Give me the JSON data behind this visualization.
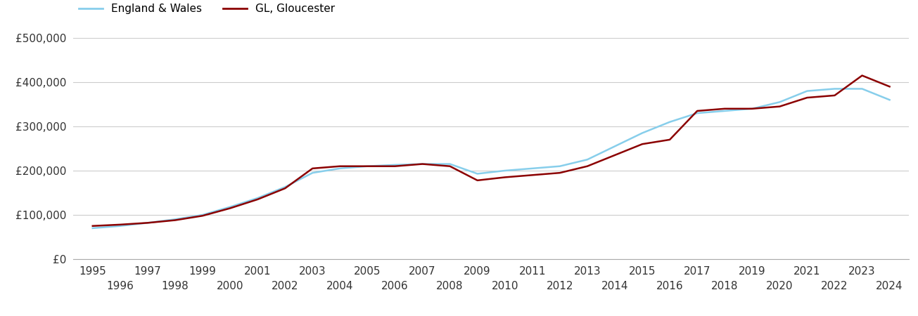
{
  "gloucester": {
    "years": [
      1995,
      1996,
      1997,
      1998,
      1999,
      2000,
      2001,
      2002,
      2003,
      2004,
      2005,
      2006,
      2007,
      2008,
      2009,
      2010,
      2011,
      2012,
      2013,
      2014,
      2015,
      2016,
      2017,
      2018,
      2019,
      2020,
      2021,
      2022,
      2023,
      2024
    ],
    "values": [
      75000,
      78000,
      82000,
      88000,
      98000,
      115000,
      135000,
      160000,
      205000,
      210000,
      210000,
      210000,
      215000,
      210000,
      178000,
      185000,
      190000,
      195000,
      210000,
      235000,
      260000,
      270000,
      335000,
      340000,
      340000,
      345000,
      365000,
      370000,
      415000,
      390000
    ]
  },
  "england_wales": {
    "years": [
      1995,
      1996,
      1997,
      1998,
      1999,
      2000,
      2001,
      2002,
      2003,
      2004,
      2005,
      2006,
      2007,
      2008,
      2009,
      2010,
      2011,
      2012,
      2013,
      2014,
      2015,
      2016,
      2017,
      2018,
      2019,
      2020,
      2021,
      2022,
      2023,
      2024
    ],
    "values": [
      70000,
      75000,
      82000,
      90000,
      100000,
      118000,
      138000,
      163000,
      195000,
      205000,
      210000,
      213000,
      215000,
      215000,
      193000,
      200000,
      205000,
      210000,
      225000,
      255000,
      285000,
      310000,
      330000,
      335000,
      340000,
      355000,
      380000,
      385000,
      385000,
      360000
    ]
  },
  "gloucester_color": "#8B0000",
  "england_wales_color": "#87CEEB",
  "gloucester_label": "GL, Gloucester",
  "england_wales_label": "England & Wales",
  "ylim": [
    0,
    500000
  ],
  "yticks": [
    0,
    100000,
    200000,
    300000,
    400000,
    500000
  ],
  "ytick_labels": [
    "£0",
    "£100,000",
    "£200,000",
    "£300,000",
    "£400,000",
    "£500,000"
  ],
  "background_color": "#ffffff",
  "grid_color": "#cccccc",
  "line_width": 1.8,
  "tick_fontsize": 11
}
